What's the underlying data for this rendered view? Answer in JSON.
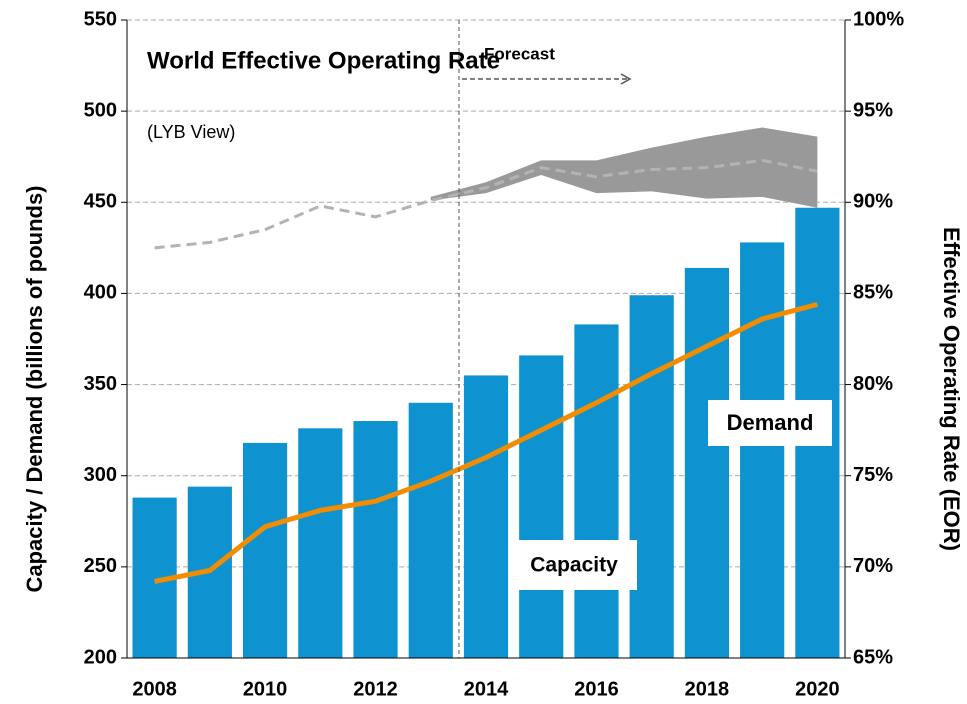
{
  "chart_data": {
    "type": "bar",
    "title": "World Effective Operating Rate",
    "subtitle": "(LYB View)",
    "annotation": "Forecast",
    "y_label": "Capacity / Demand (billions of pounds)",
    "y2_label": "Effective Operating Rate (EOR)",
    "categories": [
      "2008",
      null,
      "2010",
      null,
      "2012",
      null,
      "2014",
      null,
      "2016",
      null,
      "2018",
      null,
      "2020"
    ],
    "ylim": [
      200,
      550
    ],
    "yticks": [
      200,
      250,
      300,
      350,
      400,
      450,
      500,
      550
    ],
    "y2lim": [
      65,
      100
    ],
    "y2ticks": [
      {
        "value": 65,
        "label": "65%"
      },
      {
        "value": 70,
        "label": "70%"
      },
      {
        "value": 75,
        "label": "75%"
      },
      {
        "value": 80,
        "label": "80%"
      },
      {
        "value": 85,
        "label": "85%"
      },
      {
        "value": 90,
        "label": "90%"
      },
      {
        "value": 95,
        "label": "95%"
      },
      {
        "value": 100,
        "label": "100%"
      }
    ],
    "grid": true,
    "series": [
      {
        "name": "Capacity",
        "type": "bar",
        "color": "#0e93d0",
        "values": [
          288,
          294,
          318,
          326,
          330,
          340,
          355,
          366,
          383,
          399,
          414,
          428,
          447
        ]
      },
      {
        "name": "Demand",
        "type": "line",
        "color": "#f28c00",
        "values": [
          242,
          248,
          272,
          281,
          286,
          297,
          310,
          325,
          340,
          356,
          371,
          386,
          394
        ]
      },
      {
        "type": "line",
        "axis": "y2",
        "dashed": true,
        "color": "#b3b3b3",
        "values": [
          87.5,
          87.8,
          88.5,
          89.8,
          89.2,
          90.1,
          90.8,
          91.9,
          91.4,
          91.8,
          91.9,
          92.3,
          91.7
        ]
      }
    ],
    "forecast_range": {
      "axis": "y2",
      "color": "#999999",
      "low": [
        null,
        null,
        null,
        null,
        null,
        90.1,
        90.5,
        91.5,
        90.5,
        90.6,
        90.2,
        90.3,
        89.7
      ],
      "high": [
        null,
        null,
        null,
        null,
        null,
        90.3,
        91.1,
        92.3,
        92.3,
        93.0,
        93.6,
        94.1,
        93.6
      ]
    }
  }
}
